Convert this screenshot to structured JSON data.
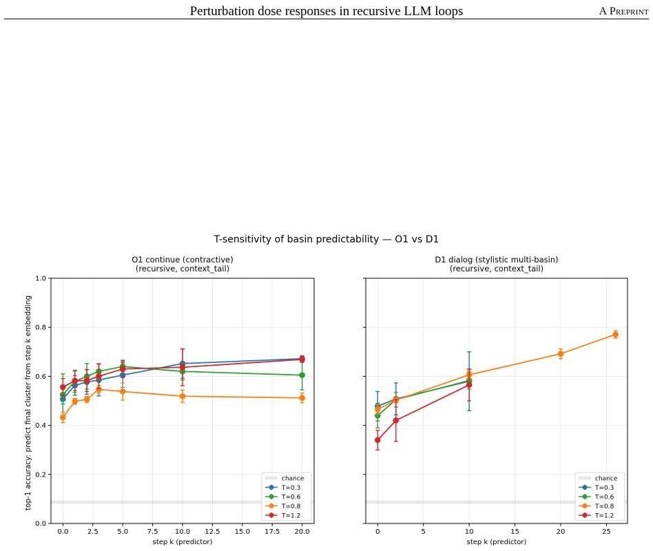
{
  "page": {
    "header_title": "Perturbation dose responses in recursive LLM loops",
    "header_right": "A Preprint"
  },
  "figure": {
    "suptitle": "T-sensitivity of basin predictability — O1 vs D1",
    "ylabel": "top-1 accuracy: predict final cluster from step k embedding",
    "colors": {
      "T=0.3": "#1f77b4",
      "T=0.6": "#2ca02c",
      "T=0.8": "#ff7f0e",
      "T=1.2": "#d62728",
      "chance": "#cccccc"
    }
  },
  "chart_data": [
    {
      "type": "line",
      "title": "O1 continue (contractive)\n(recursive, context_tail)",
      "xlabel": "step k (predictor)",
      "ylabel": "top-1 accuracy: predict final cluster from step k embedding",
      "xlim": [
        -1.0,
        21.0
      ],
      "ylim": [
        0.0,
        1.0
      ],
      "xticks": [
        "0.0",
        "2.5",
        "5.0",
        "7.5",
        "10.0",
        "12.5",
        "15.0",
        "17.5",
        "20.0"
      ],
      "xtick_values": [
        0,
        2.5,
        5,
        7.5,
        10,
        12.5,
        15,
        17.5,
        20
      ],
      "yticks": [
        "0.0",
        "0.2",
        "0.4",
        "0.6",
        "0.8",
        "1.0"
      ],
      "ytick_values": [
        0,
        0.2,
        0.4,
        0.6,
        0.8,
        1.0
      ],
      "grid": true,
      "legend": "lower-right",
      "chance": 0.087,
      "series": [
        {
          "name": "T=0.3",
          "x": [
            0,
            1,
            2,
            3,
            5,
            10,
            20
          ],
          "y": [
            0.507,
            0.563,
            0.577,
            0.585,
            0.605,
            0.652,
            0.672
          ],
          "err": [
            0.02,
            0.04,
            0.05,
            0.065,
            0.05,
            0.06,
            0.012
          ]
        },
        {
          "name": "T=0.6",
          "x": [
            0,
            1,
            2,
            3,
            5,
            10,
            20
          ],
          "y": [
            0.525,
            0.58,
            0.6,
            0.62,
            0.64,
            0.62,
            0.605
          ],
          "err": [
            0.085,
            0.045,
            0.052,
            0.032,
            0.02,
            0.035,
            0.06
          ]
        },
        {
          "name": "T=0.8",
          "x": [
            0,
            1,
            2,
            3,
            5,
            10,
            20
          ],
          "y": [
            0.433,
            0.498,
            0.506,
            0.547,
            0.538,
            0.519,
            0.512
          ],
          "err": [
            0.022,
            0.012,
            0.013,
            0.015,
            0.035,
            0.025,
            0.02
          ]
        },
        {
          "name": "T=1.2",
          "x": [
            0,
            1,
            2,
            3,
            5,
            10,
            20
          ],
          "y": [
            0.556,
            0.582,
            0.583,
            0.6,
            0.63,
            0.637,
            0.669
          ],
          "err": [
            0.035,
            0.04,
            0.045,
            0.05,
            0.035,
            0.075,
            0.012
          ]
        }
      ]
    },
    {
      "type": "line",
      "title": "D1 dialog (stylistic multi-basin)\n(recursive, context_tail)",
      "xlabel": "step k (predictor)",
      "xlim": [
        -1.3,
        27.3
      ],
      "ylim": [
        0.0,
        1.0
      ],
      "xticks": [
        "0",
        "5",
        "10",
        "15",
        "20",
        "25"
      ],
      "xtick_values": [
        0,
        5,
        10,
        15,
        20,
        25
      ],
      "yticks": [
        "0.0",
        "0.2",
        "0.4",
        "0.6",
        "0.8",
        "1.0"
      ],
      "ytick_values": [
        0,
        0.2,
        0.4,
        0.6,
        0.8,
        1.0
      ],
      "grid": true,
      "legend": "lower-right",
      "chance": 0.087,
      "series": [
        {
          "name": "T=0.3",
          "x": [
            0,
            2,
            10
          ],
          "y": [
            0.478,
            0.508,
            0.58
          ],
          "err": [
            0.06,
            0.065,
            0.12
          ]
        },
        {
          "name": "T=0.6",
          "x": [
            0,
            2,
            10
          ],
          "y": [
            0.44,
            0.505,
            0.583
          ],
          "err": [
            0.05,
            0.03,
            0.035
          ]
        },
        {
          "name": "T=0.8",
          "x": [
            0,
            2,
            10,
            20,
            26
          ],
          "y": [
            0.465,
            0.503,
            0.606,
            0.692,
            0.771
          ],
          "err": [
            0.02,
            0.01,
            0.02,
            0.02,
            0.015
          ]
        },
        {
          "name": "T=1.2",
          "x": [
            0,
            2,
            10
          ],
          "y": [
            0.34,
            0.42,
            0.565
          ],
          "err": [
            0.04,
            0.085,
            0.065
          ]
        }
      ]
    }
  ],
  "legend": {
    "chance_label": "chance"
  }
}
